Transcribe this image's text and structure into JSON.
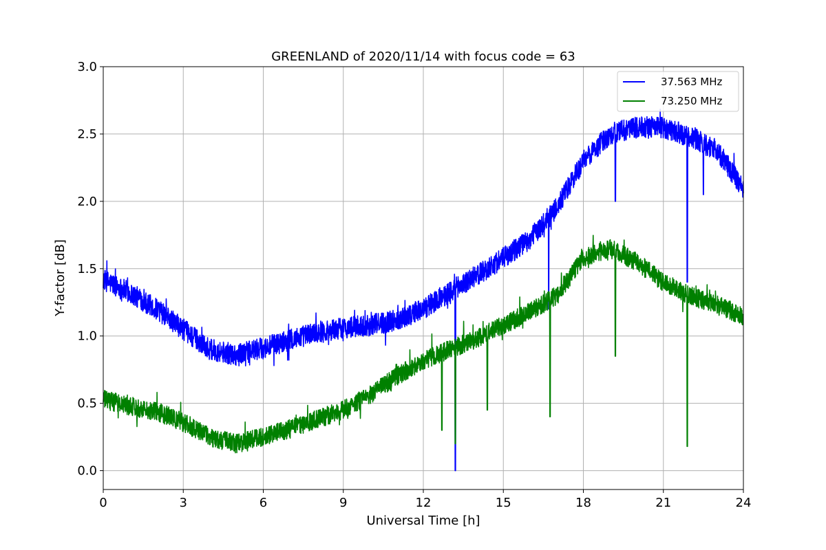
{
  "chart_data": {
    "type": "line",
    "title": "GREENLAND of 2020/11/14 with focus code = 63",
    "xlabel": "Universal Time [h]",
    "ylabel": "Y-factor [dB]",
    "xlim": [
      0,
      24
    ],
    "ylim": [
      -0.14,
      3.0
    ],
    "xticks": [
      0,
      3,
      6,
      9,
      12,
      15,
      18,
      21,
      24
    ],
    "xtick_labels": [
      "0",
      "3",
      "6",
      "9",
      "12",
      "15",
      "18",
      "21",
      "24"
    ],
    "yticks": [
      0.0,
      0.5,
      1.0,
      1.5,
      2.0,
      2.5,
      3.0
    ],
    "ytick_labels": [
      "0.0",
      "0.5",
      "1.0",
      "1.5",
      "2.0",
      "2.5",
      "3.0"
    ],
    "grid": true,
    "legend_position": "top-right",
    "series": [
      {
        "name": "37.563 MHz",
        "color": "#0000ff",
        "noise_amplitude": 0.08,
        "x": [
          0,
          1,
          2,
          3,
          4,
          5,
          6,
          7,
          8,
          9,
          10,
          11,
          12,
          13,
          14,
          15,
          16,
          17,
          18,
          19,
          20,
          21,
          22,
          23,
          24
        ],
        "y": [
          1.42,
          1.32,
          1.2,
          1.05,
          0.9,
          0.86,
          0.91,
          0.97,
          1.03,
          1.06,
          1.08,
          1.12,
          1.2,
          1.33,
          1.45,
          1.58,
          1.72,
          1.95,
          2.3,
          2.5,
          2.55,
          2.55,
          2.48,
          2.38,
          2.1
        ],
        "dips": [
          [
            13.2,
            0.0
          ],
          [
            16.7,
            1.2
          ],
          [
            19.2,
            2.0
          ],
          [
            21.9,
            1.4
          ],
          [
            22.5,
            2.05
          ]
        ]
      },
      {
        "name": "73.250 MHz",
        "color": "#008000",
        "noise_amplitude": 0.07,
        "x": [
          0,
          1,
          2,
          3,
          4,
          5,
          6,
          7,
          8,
          9,
          10,
          11,
          12,
          13,
          14,
          15,
          16,
          17,
          18,
          19,
          20,
          21,
          22,
          23,
          24
        ],
        "y": [
          0.53,
          0.48,
          0.44,
          0.36,
          0.25,
          0.2,
          0.25,
          0.31,
          0.38,
          0.45,
          0.56,
          0.7,
          0.82,
          0.9,
          0.98,
          1.08,
          1.18,
          1.3,
          1.58,
          1.65,
          1.55,
          1.4,
          1.3,
          1.23,
          1.15
        ],
        "dips": [
          [
            12.7,
            0.3
          ],
          [
            13.2,
            0.2
          ],
          [
            14.4,
            0.45
          ],
          [
            16.75,
            0.4
          ],
          [
            19.2,
            0.85
          ],
          [
            21.9,
            0.18
          ]
        ]
      }
    ]
  }
}
